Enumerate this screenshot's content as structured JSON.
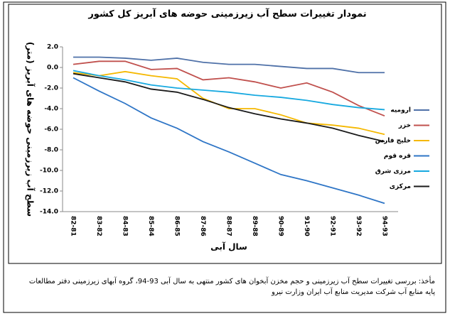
{
  "chart_data": {
    "type": "line",
    "title": "نمودار تغییرات سطح آب زیرزمینی حوضه های آبریز کل کشور",
    "y_label": "سطح آب زیرزمینی حوضه های آبریز (متر)",
    "x_label": "سال آبی",
    "categories": [
      "82-81",
      "83-82",
      "84-83",
      "85-84",
      "86-85",
      "87-86",
      "88-87",
      "89-88",
      "90-89",
      "91-90",
      "92-91",
      "93-92",
      "94-93"
    ],
    "series": [
      {
        "name": "ارومیه",
        "color": "#4f71a8",
        "values": [
          1.0,
          1.0,
          0.9,
          0.7,
          0.9,
          0.5,
          0.3,
          0.3,
          0.1,
          -0.1,
          -0.1,
          -0.5,
          -0.5
        ]
      },
      {
        "name": "خزر",
        "color": "#c0504d",
        "values": [
          0.3,
          0.6,
          0.6,
          -0.2,
          -0.1,
          -1.2,
          -1.0,
          -1.4,
          -2.0,
          -1.5,
          -2.4,
          -3.7,
          -4.7
        ]
      },
      {
        "name": "خلیج فارس",
        "color": "#f5b800",
        "values": [
          -0.5,
          -0.8,
          -0.4,
          -0.8,
          -1.1,
          -3.0,
          -4.0,
          -4.0,
          -4.6,
          -5.4,
          -5.6,
          -5.9,
          -6.5
        ]
      },
      {
        "name": "قره قوم",
        "color": "#2e75c6",
        "values": [
          -1.0,
          -2.3,
          -3.5,
          -4.9,
          -5.9,
          -7.2,
          -8.2,
          -9.3,
          -10.4,
          -11.0,
          -11.7,
          -12.4,
          -13.2
        ]
      },
      {
        "name": "مرزی شرق",
        "color": "#17a9e0",
        "values": [
          -0.3,
          -0.8,
          -1.2,
          -1.7,
          -2.0,
          -2.2,
          -2.4,
          -2.7,
          -2.9,
          -3.2,
          -3.6,
          -3.9,
          -4.1
        ]
      },
      {
        "name": "مرکزی",
        "color": "#1a1a1a",
        "values": [
          -0.6,
          -1.0,
          -1.4,
          -2.1,
          -2.4,
          -3.1,
          -3.9,
          -4.5,
          -5.0,
          -5.4,
          -5.9,
          -6.6,
          -7.2
        ]
      }
    ],
    "ylim": [
      2,
      -14
    ],
    "yticks": [
      {
        "value": 2,
        "label": "2.0"
      },
      {
        "value": 0,
        "label": "0.0"
      },
      {
        "value": -2,
        "label": "-2.0"
      },
      {
        "value": -4,
        "label": "-4.0"
      },
      {
        "value": -6,
        "label": "-6.0"
      },
      {
        "value": -8,
        "label": "-8.0"
      },
      {
        "value": -10,
        "label": "-10.0"
      },
      {
        "value": -12,
        "label": "-12.0"
      },
      {
        "value": -14,
        "label": "-14.0"
      }
    ],
    "legend": "right",
    "source": [
      "مأخذ: بررسی تغییرات سطح آب زیرزمینی و حجم مخزن آبخوان های کشور منتهی به سال آبی 93-94، گروه آبهای زیرزمینی دفتر مطالعات",
      "پایه منابع آب شرکت مدیریت منابع آب ایران وزارت نیرو"
    ]
  }
}
